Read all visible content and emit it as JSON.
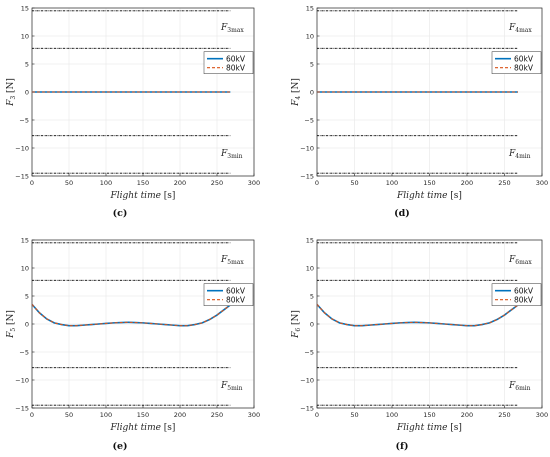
{
  "colors": {
    "series_60kV": "#0072BD",
    "series_80kV": "#D95319",
    "limit_line": "#000000",
    "grid": "#e6e6e6",
    "axes": "#262626"
  },
  "chart_data": [
    {
      "type": "line",
      "caption": "(c)",
      "xlabel": "Flight time [s]",
      "ylabel_symbol": "F",
      "ylabel_sub": "3",
      "ylabel_unit": "[N]",
      "xlim": [
        0,
        300
      ],
      "ylim": [
        -15,
        15
      ],
      "xticks": [
        0,
        50,
        100,
        150,
        200,
        250,
        300
      ],
      "yticks": [
        -15,
        -10,
        -5,
        0,
        5,
        10,
        15
      ],
      "grid": true,
      "legend_position": "upper-right",
      "limits": {
        "upper_outer": 14.5,
        "upper_inner": 7.8,
        "lower_inner": -7.8,
        "lower_outer": -14.5,
        "x_end": 268,
        "max_label_symbol": "F",
        "max_label_sub": "3max",
        "min_label_symbol": "F",
        "min_label_sub": "3min"
      },
      "series": [
        {
          "name": "60kV",
          "style": "solid",
          "x": [
            0,
            50,
            100,
            150,
            200,
            268
          ],
          "y": [
            0,
            0,
            0,
            0,
            0,
            0
          ]
        },
        {
          "name": "80kV",
          "style": "dashed",
          "x": [
            0,
            50,
            100,
            150,
            200,
            268
          ],
          "y": [
            0,
            0,
            0,
            0,
            0,
            0
          ]
        }
      ]
    },
    {
      "type": "line",
      "caption": "(d)",
      "xlabel": "Flight time [s]",
      "ylabel_symbol": "F",
      "ylabel_sub": "4",
      "ylabel_unit": "[N]",
      "xlim": [
        0,
        300
      ],
      "ylim": [
        -15,
        15
      ],
      "xticks": [
        0,
        50,
        100,
        150,
        200,
        250,
        300
      ],
      "yticks": [
        -15,
        -10,
        -5,
        0,
        5,
        10,
        15
      ],
      "grid": true,
      "legend_position": "upper-right",
      "limits": {
        "upper_outer": 14.5,
        "upper_inner": 7.8,
        "lower_inner": -7.8,
        "lower_outer": -14.5,
        "x_end": 268,
        "max_label_symbol": "F",
        "max_label_sub": "4max",
        "min_label_symbol": "F",
        "min_label_sub": "4min"
      },
      "series": [
        {
          "name": "60kV",
          "style": "solid",
          "x": [
            0,
            50,
            100,
            150,
            200,
            268
          ],
          "y": [
            0,
            0,
            0,
            0,
            0,
            0
          ]
        },
        {
          "name": "80kV",
          "style": "dashed",
          "x": [
            0,
            50,
            100,
            150,
            200,
            268
          ],
          "y": [
            0,
            0,
            0,
            0,
            0,
            0
          ]
        }
      ]
    },
    {
      "type": "line",
      "caption": "(e)",
      "xlabel": "Flight time [s]",
      "ylabel_symbol": "F",
      "ylabel_sub": "5",
      "ylabel_unit": "[N]",
      "xlim": [
        0,
        300
      ],
      "ylim": [
        -15,
        15
      ],
      "xticks": [
        0,
        50,
        100,
        150,
        200,
        250,
        300
      ],
      "yticks": [
        -15,
        -10,
        -5,
        0,
        5,
        10,
        15
      ],
      "grid": true,
      "legend_position": "upper-right",
      "limits": {
        "upper_outer": 14.5,
        "upper_inner": 7.8,
        "lower_inner": -7.8,
        "lower_outer": -14.5,
        "x_end": 268,
        "max_label_symbol": "F",
        "max_label_sub": "5max",
        "min_label_symbol": "F",
        "min_label_sub": "5min"
      },
      "series": [
        {
          "name": "60kV",
          "style": "solid",
          "x": [
            0,
            10,
            20,
            30,
            40,
            50,
            60,
            70,
            80,
            90,
            100,
            110,
            120,
            130,
            140,
            150,
            160,
            170,
            180,
            190,
            200,
            210,
            220,
            230,
            240,
            250,
            260,
            268
          ],
          "y": [
            3.5,
            2.0,
            0.9,
            0.2,
            -0.1,
            -0.3,
            -0.3,
            -0.2,
            -0.1,
            0.0,
            0.1,
            0.2,
            0.25,
            0.3,
            0.25,
            0.2,
            0.1,
            0.0,
            -0.1,
            -0.2,
            -0.3,
            -0.3,
            -0.1,
            0.2,
            0.8,
            1.6,
            2.6,
            3.4
          ]
        },
        {
          "name": "80kV",
          "style": "dashed",
          "x": [
            0,
            10,
            20,
            30,
            40,
            50,
            60,
            70,
            80,
            90,
            100,
            110,
            120,
            130,
            140,
            150,
            160,
            170,
            180,
            190,
            200,
            210,
            220,
            230,
            240,
            250,
            260,
            268
          ],
          "y": [
            3.5,
            2.0,
            0.9,
            0.2,
            -0.1,
            -0.3,
            -0.3,
            -0.2,
            -0.1,
            0.0,
            0.1,
            0.2,
            0.25,
            0.3,
            0.25,
            0.2,
            0.1,
            0.0,
            -0.1,
            -0.2,
            -0.3,
            -0.3,
            -0.1,
            0.2,
            0.8,
            1.6,
            2.6,
            3.4
          ]
        }
      ]
    },
    {
      "type": "line",
      "caption": "(f)",
      "xlabel": "Flight time [s]",
      "ylabel_symbol": "F",
      "ylabel_sub": "6",
      "ylabel_unit": "[N]",
      "xlim": [
        0,
        300
      ],
      "ylim": [
        -15,
        15
      ],
      "xticks": [
        0,
        50,
        100,
        150,
        200,
        250,
        300
      ],
      "yticks": [
        -15,
        -10,
        -5,
        0,
        5,
        10,
        15
      ],
      "grid": true,
      "legend_position": "upper-right",
      "limits": {
        "upper_outer": 14.5,
        "upper_inner": 7.8,
        "lower_inner": -7.8,
        "lower_outer": -14.5,
        "x_end": 268,
        "max_label_symbol": "F",
        "max_label_sub": "6max",
        "min_label_symbol": "F",
        "min_label_sub": "6min"
      },
      "series": [
        {
          "name": "60kV",
          "style": "solid",
          "x": [
            0,
            10,
            20,
            30,
            40,
            50,
            60,
            70,
            80,
            90,
            100,
            110,
            120,
            130,
            140,
            150,
            160,
            170,
            180,
            190,
            200,
            210,
            220,
            230,
            240,
            250,
            260,
            268
          ],
          "y": [
            3.5,
            2.0,
            0.9,
            0.2,
            -0.1,
            -0.3,
            -0.3,
            -0.2,
            -0.1,
            0.0,
            0.1,
            0.2,
            0.25,
            0.3,
            0.25,
            0.2,
            0.1,
            0.0,
            -0.1,
            -0.2,
            -0.3,
            -0.3,
            -0.1,
            0.2,
            0.8,
            1.6,
            2.6,
            3.4
          ]
        },
        {
          "name": "80kV",
          "style": "dashed",
          "x": [
            0,
            10,
            20,
            30,
            40,
            50,
            60,
            70,
            80,
            90,
            100,
            110,
            120,
            130,
            140,
            150,
            160,
            170,
            180,
            190,
            200,
            210,
            220,
            230,
            240,
            250,
            260,
            268
          ],
          "y": [
            3.5,
            2.0,
            0.9,
            0.2,
            -0.1,
            -0.3,
            -0.3,
            -0.2,
            -0.1,
            0.0,
            0.1,
            0.2,
            0.25,
            0.3,
            0.25,
            0.2,
            0.1,
            0.0,
            -0.1,
            -0.2,
            -0.3,
            -0.3,
            -0.1,
            0.2,
            0.8,
            1.6,
            2.6,
            3.4
          ]
        }
      ]
    }
  ]
}
